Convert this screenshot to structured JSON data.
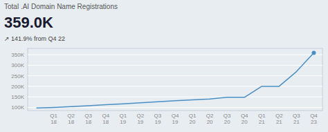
{
  "chart_data": {
    "type": "line",
    "title": "Total .AI Domain Name Registrations",
    "annotations": [
      "359.0K",
      "↗ 141.9%  from Q4 22"
    ],
    "categories": [
      null,
      "Q1\n18",
      "Q2\n18",
      "Q3\n18",
      "Q4\n18",
      "Q1\n19",
      "Q2\n19",
      "Q3\n19",
      "Q4\n19",
      "Q1\n20",
      "Q2\n20",
      "Q3\n20",
      "Q4\n20",
      "Q1\n21",
      "Q2\n21",
      "Q3\n21",
      "Q4\n23"
    ],
    "values": [
      97000,
      100000,
      104000,
      108000,
      113000,
      117000,
      122000,
      127000,
      132000,
      136000,
      140000,
      148000,
      148000,
      200000,
      200000,
      270000,
      359000
    ],
    "color": "#4a8fc4",
    "ylim": [
      85000,
      380000
    ],
    "yticks": [
      {
        "value": 100000,
        "label": "100K"
      },
      {
        "value": 150000,
        "label": "150K"
      },
      {
        "value": 200000,
        "label": "200K"
      },
      {
        "value": 250000,
        "label": "250K"
      },
      {
        "value": 300000,
        "label": "300K"
      },
      {
        "value": 350000,
        "label": "350K"
      }
    ],
    "grid": true
  }
}
